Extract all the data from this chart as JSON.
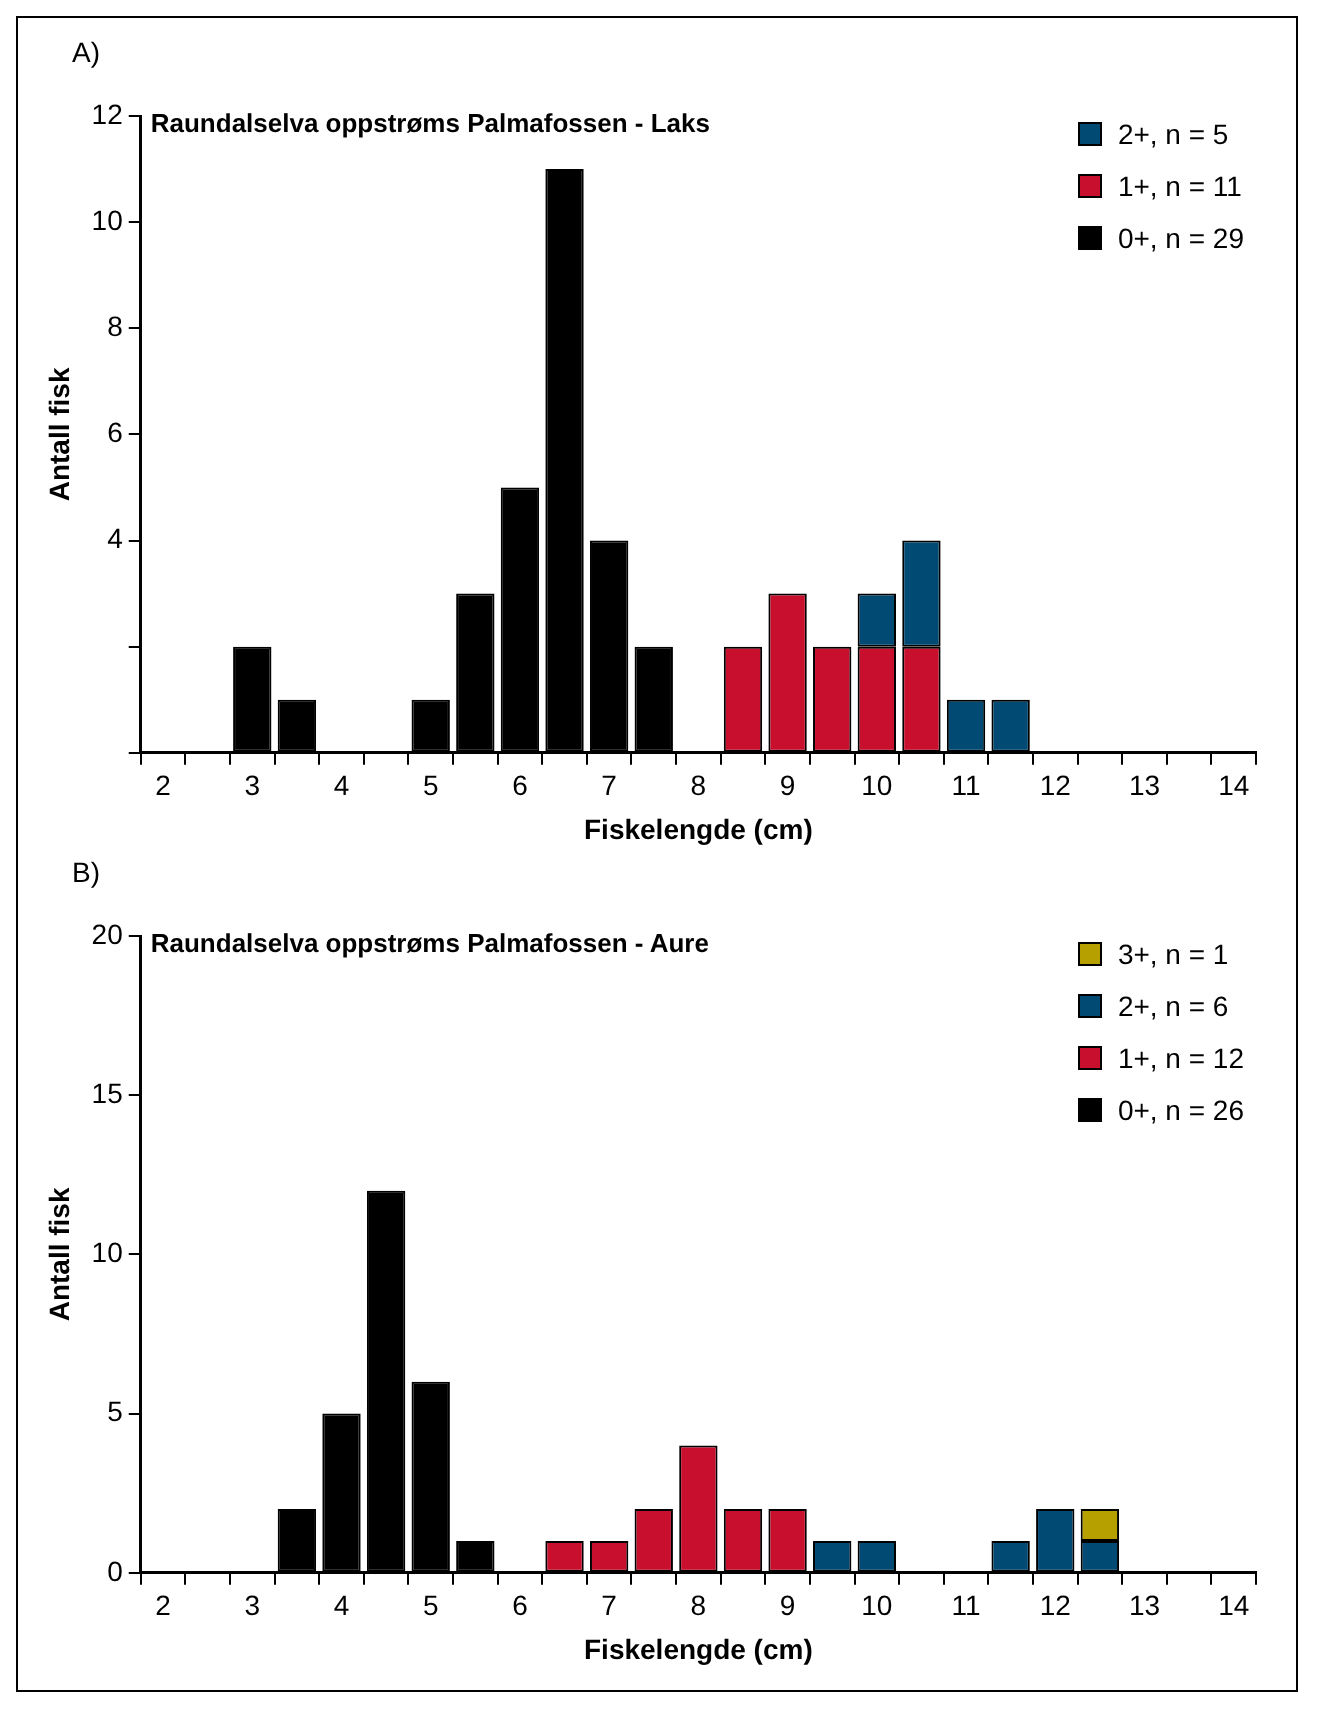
{
  "chart_data": [
    {
      "type": "bar",
      "stacked": true,
      "title": "Raundalselva oppstrøms Palmafossen - Laks",
      "xlabel": "Fiskelengde (cm)",
      "ylabel": "Antall fisk",
      "annotations": [
        "A)"
      ],
      "legend": "top right",
      "grid": false,
      "categories": [
        "2",
        null,
        "3",
        null,
        "4",
        null,
        "5",
        null,
        "6",
        null,
        "7",
        null,
        "8",
        null,
        "9",
        null,
        "10",
        null,
        "11",
        null,
        "12",
        null,
        "13",
        null,
        "14"
      ],
      "series": [
        {
          "name": "0+, n = 29",
          "color": "#000000",
          "values": [
            0,
            0,
            2,
            1,
            0,
            0,
            1,
            3,
            5,
            11,
            4,
            2,
            0,
            0,
            0,
            0,
            0,
            0,
            0,
            0,
            0,
            0,
            0,
            0,
            0
          ]
        },
        {
          "name": "1+, n = 11",
          "color": "#c8102e",
          "values": [
            0,
            0,
            0,
            0,
            0,
            0,
            0,
            0,
            0,
            0,
            0,
            0,
            0,
            2,
            3,
            2,
            2,
            2,
            0,
            0,
            0,
            0,
            0,
            0,
            0
          ]
        },
        {
          "name": "2+, n = 5",
          "color": "#004a73",
          "values": [
            0,
            0,
            0,
            0,
            0,
            0,
            0,
            0,
            0,
            0,
            0,
            0,
            0,
            0,
            0,
            0,
            1,
            2,
            1,
            1,
            0,
            0,
            0,
            0,
            0
          ]
        }
      ],
      "ylim": [
        0,
        12
      ],
      "yticks": [
        {
          "value": 0,
          "label": null
        },
        {
          "value": 2,
          "label": null
        },
        4,
        6,
        8,
        10,
        12
      ]
    },
    {
      "type": "bar",
      "stacked": true,
      "title": "Raundalselva oppstrøms Palmafossen - Aure",
      "xlabel": "Fiskelengde (cm)",
      "ylabel": "Antall fisk",
      "annotations": [
        "B)"
      ],
      "legend": "top right",
      "grid": false,
      "categories": [
        "2",
        null,
        "3",
        null,
        "4",
        null,
        "5",
        null,
        "6",
        null,
        "7",
        null,
        "8",
        null,
        "9",
        null,
        "10",
        null,
        "11",
        null,
        "12",
        null,
        "13",
        null,
        "14"
      ],
      "series": [
        {
          "name": "0+, n = 26",
          "color": "#000000",
          "values": [
            0,
            0,
            0,
            2,
            5,
            12,
            6,
            1,
            0,
            0,
            0,
            0,
            0,
            0,
            0,
            0,
            0,
            0,
            0,
            0,
            0,
            0,
            0,
            0,
            0
          ]
        },
        {
          "name": "1+, n = 12",
          "color": "#c8102e",
          "values": [
            0,
            0,
            0,
            0,
            0,
            0,
            0,
            0,
            0,
            1,
            1,
            2,
            4,
            2,
            2,
            0,
            0,
            0,
            0,
            0,
            0,
            0,
            0,
            0,
            0
          ]
        },
        {
          "name": "2+, n = 6",
          "color": "#004a73",
          "values": [
            0,
            0,
            0,
            0,
            0,
            0,
            0,
            0,
            0,
            0,
            0,
            0,
            0,
            0,
            0,
            1,
            1,
            0,
            0,
            1,
            2,
            1,
            0,
            0,
            0
          ]
        },
        {
          "name": "3+, n = 1",
          "color": "#b5a000",
          "values": [
            0,
            0,
            0,
            0,
            0,
            0,
            0,
            0,
            0,
            0,
            0,
            0,
            0,
            0,
            0,
            0,
            0,
            0,
            0,
            0,
            0,
            1,
            0,
            0,
            0
          ]
        }
      ],
      "ylim": [
        0,
        20
      ],
      "yticks": [
        0,
        5,
        10,
        15,
        20
      ]
    }
  ]
}
